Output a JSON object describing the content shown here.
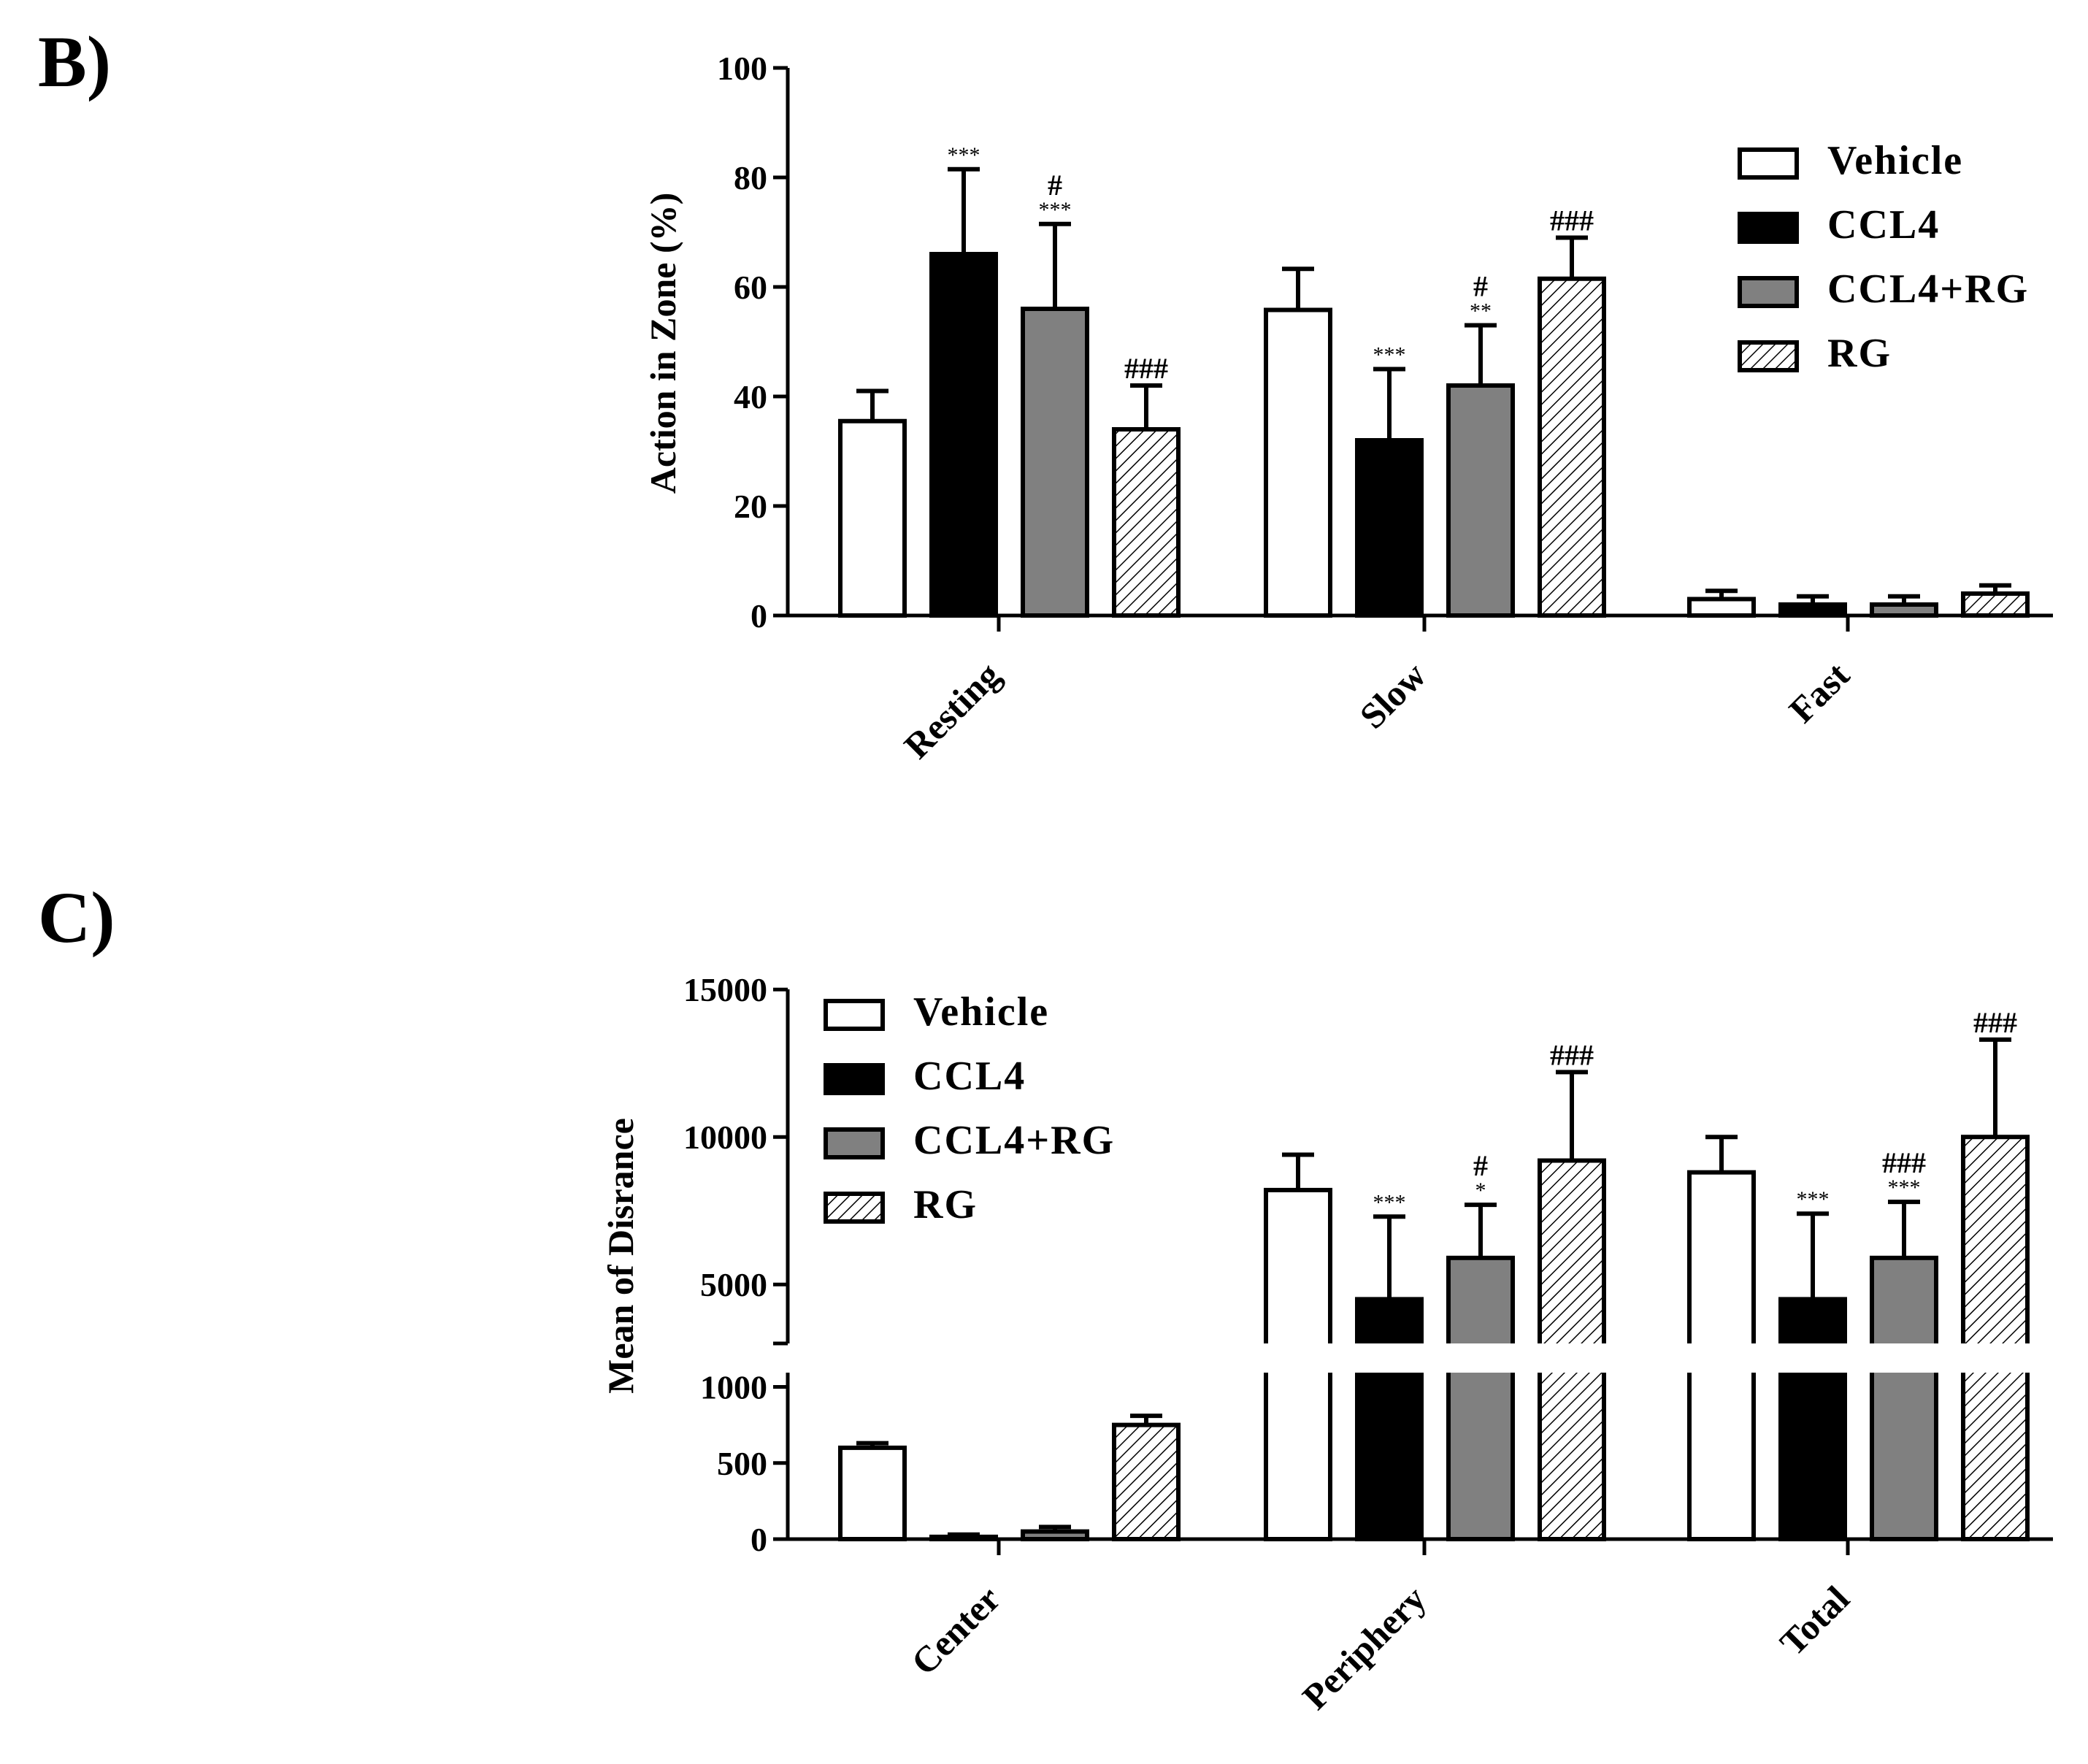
{
  "colors": {
    "Vehicle": "#ffffff",
    "CCL4": "#000000",
    "CCL4+RG": "#808080",
    "RG": "hatch"
  },
  "chart_data": [
    {
      "panel_label": "B)",
      "type": "bar",
      "ylabel": "Action in Zone (%)",
      "ylim": [
        0,
        100
      ],
      "yticks": [
        "0",
        "20",
        "40",
        "60",
        "80",
        "100"
      ],
      "categories": [
        "Resting",
        "Slow",
        "Fast"
      ],
      "legend": [
        "Vehicle",
        "CCL4",
        "CCL4+RG",
        "RG"
      ],
      "legend_position": "top-right",
      "series": [
        {
          "name": "Vehicle",
          "values": [
            35.5,
            55.8,
            3.0
          ],
          "errors": [
            5.5,
            7.5,
            1.5
          ],
          "annotations": [
            [
              "",
              ""
            ],
            [
              "",
              ""
            ],
            [
              "",
              ""
            ]
          ]
        },
        {
          "name": "CCL4",
          "values": [
            66.0,
            32.0,
            2.0
          ],
          "errors": [
            15.5,
            13.0,
            1.5
          ],
          "annotations": [
            [
              "",
              "***"
            ],
            [
              "",
              "***"
            ],
            [
              "",
              ""
            ]
          ]
        },
        {
          "name": "CCL4+RG",
          "values": [
            56.0,
            42.0,
            2.0
          ],
          "errors": [
            15.5,
            11.0,
            1.5
          ],
          "annotations": [
            [
              "#",
              "***"
            ],
            [
              "#",
              "**"
            ],
            [
              "",
              ""
            ]
          ]
        },
        {
          "name": "RG",
          "values": [
            34.0,
            61.5,
            4.0
          ],
          "errors": [
            8.0,
            7.5,
            1.5
          ],
          "annotations": [
            [
              "###",
              ""
            ],
            [
              "###",
              ""
            ],
            [
              "",
              ""
            ]
          ]
        }
      ]
    },
    {
      "panel_label": "C)",
      "type": "bar",
      "ylabel": "Mean of Disrance",
      "axis_break": [
        1000,
        3000
      ],
      "ylim": [
        0,
        15000
      ],
      "yticks": [
        "0",
        "500",
        "1000",
        "5000",
        "10000",
        "15000"
      ],
      "categories": [
        "Center",
        "Periphery",
        "Total"
      ],
      "legend": [
        "Vehicle",
        "CCL4",
        "CCL4+RG",
        "RG"
      ],
      "legend_position": "top-left",
      "series": [
        {
          "name": "Vehicle",
          "values": [
            600,
            8200,
            8800
          ],
          "errors": [
            30,
            1200,
            1200
          ],
          "annotations": [
            [
              "",
              ""
            ],
            [
              "",
              ""
            ],
            [
              "",
              ""
            ]
          ]
        },
        {
          "name": "CCL4",
          "values": [
            15,
            4500,
            4500
          ],
          "errors": [
            15,
            2800,
            2900
          ],
          "annotations": [
            [
              "",
              ""
            ],
            [
              "",
              "***"
            ],
            [
              "",
              "***"
            ]
          ]
        },
        {
          "name": "CCL4+RG",
          "values": [
            50,
            5900,
            5900
          ],
          "errors": [
            30,
            1800,
            1900
          ],
          "annotations": [
            [
              "",
              ""
            ],
            [
              "#",
              "*"
            ],
            [
              "###",
              "***"
            ]
          ]
        },
        {
          "name": "RG",
          "values": [
            750,
            9200,
            10000
          ],
          "errors": [
            60,
            3000,
            3300
          ],
          "annotations": [
            [
              "",
              ""
            ],
            [
              "###",
              ""
            ],
            [
              "###",
              ""
            ]
          ]
        }
      ]
    }
  ]
}
